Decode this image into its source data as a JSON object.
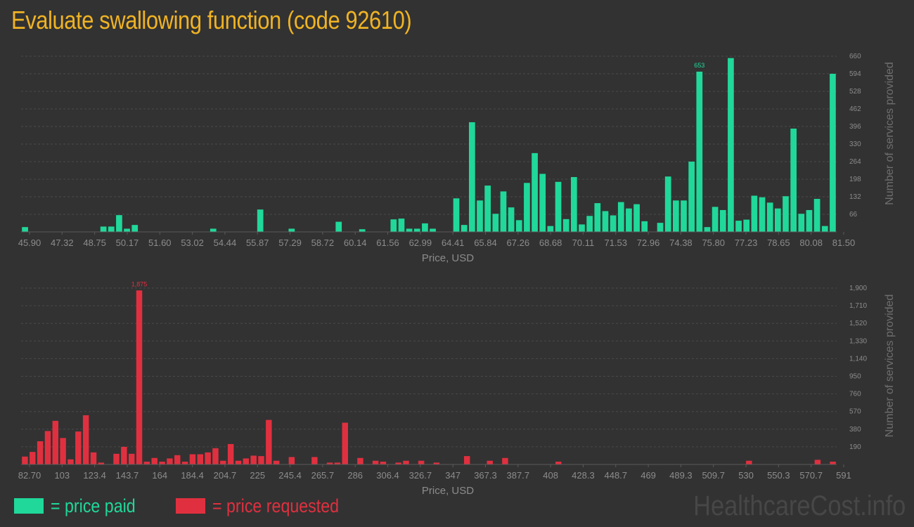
{
  "title": "Evaluate swallowing function (code 92610)",
  "colors": {
    "paid": "#20d89a",
    "requested": "#e0303f",
    "title": "#f0b323",
    "axis_text": "#8c8c8c",
    "grid": "#4a4a4a"
  },
  "legend": {
    "paid_label": "= price paid",
    "requested_label": "= price requested"
  },
  "watermark": "HealthcareCost.info",
  "chart_data": [
    {
      "type": "bar",
      "title": "",
      "xlabel": "Price, USD",
      "ylabel": "Number of services provided",
      "ylim": [
        0,
        660
      ],
      "yticks": [
        66,
        132,
        198,
        264,
        330,
        396,
        462,
        528,
        594,
        660
      ],
      "xtick_labels": [
        "45.90",
        "47.32",
        "48.75",
        "50.17",
        "51.60",
        "53.02",
        "54.44",
        "55.87",
        "57.29",
        "58.72",
        "60.14",
        "61.56",
        "62.99",
        "64.41",
        "65.84",
        "67.26",
        "68.68",
        "70.11",
        "71.53",
        "72.96",
        "74.38",
        "75.80",
        "77.23",
        "78.65",
        "80.08",
        "81.50"
      ],
      "grid": true,
      "peak_label": "653",
      "peak_index": 86,
      "values": [
        18,
        0,
        0,
        0,
        0,
        0,
        0,
        0,
        0,
        0,
        20,
        20,
        63,
        12,
        26,
        0,
        0,
        0,
        0,
        0,
        0,
        0,
        0,
        0,
        12,
        0,
        0,
        0,
        0,
        0,
        84,
        0,
        0,
        0,
        12,
        0,
        0,
        0,
        0,
        0,
        38,
        0,
        0,
        10,
        0,
        0,
        0,
        47,
        50,
        12,
        12,
        32,
        12,
        0,
        0,
        126,
        26,
        412,
        118,
        174,
        68,
        152,
        92,
        44,
        184,
        296,
        218,
        22,
        188,
        48,
        206,
        28,
        60,
        108,
        78,
        62,
        112,
        88,
        104,
        40,
        0,
        34,
        208,
        118,
        118,
        264,
        602,
        18,
        94,
        82,
        653,
        42,
        46,
        136,
        130,
        110,
        88,
        134,
        388,
        68,
        82,
        124,
        22,
        594
      ]
    },
    {
      "type": "bar",
      "title": "",
      "xlabel": "Price, USD",
      "ylabel": "Number of services provided",
      "ylim": [
        0,
        1900
      ],
      "yticks": [
        190,
        380,
        570,
        760,
        950,
        1140,
        1330,
        1520,
        1710,
        1900
      ],
      "ytick_labels": [
        "190",
        "380",
        "570",
        "760",
        "950",
        "1,140",
        "1,330",
        "1,520",
        "1,710",
        "1,900"
      ],
      "xtick_labels": [
        "82.70",
        "103",
        "123.4",
        "143.7",
        "164",
        "184.4",
        "204.7",
        "225",
        "245.4",
        "265.7",
        "286",
        "306.4",
        "326.7",
        "347",
        "367.3",
        "387.7",
        "408",
        "428.3",
        "448.7",
        "469",
        "489.3",
        "509.7",
        "530",
        "550.3",
        "570.7",
        "591"
      ],
      "grid": true,
      "peak_label": "1,875",
      "peak_index": 15,
      "values": [
        85,
        135,
        250,
        360,
        470,
        285,
        55,
        355,
        530,
        130,
        20,
        0,
        115,
        190,
        115,
        1875,
        30,
        70,
        30,
        65,
        100,
        30,
        110,
        110,
        130,
        175,
        40,
        220,
        40,
        65,
        95,
        90,
        480,
        40,
        0,
        80,
        0,
        0,
        80,
        0,
        20,
        20,
        450,
        0,
        70,
        0,
        40,
        30,
        0,
        20,
        40,
        0,
        40,
        0,
        20,
        0,
        0,
        0,
        90,
        0,
        0,
        40,
        0,
        70,
        0,
        0,
        0,
        0,
        0,
        0,
        30,
        0,
        0,
        0,
        0,
        0,
        0,
        0,
        0,
        0,
        0,
        0,
        0,
        0,
        0,
        0,
        0,
        0,
        0,
        0,
        0,
        0,
        0,
        0,
        0,
        40,
        0,
        0,
        0,
        0,
        0,
        0,
        0,
        0,
        50,
        0,
        30
      ]
    }
  ]
}
